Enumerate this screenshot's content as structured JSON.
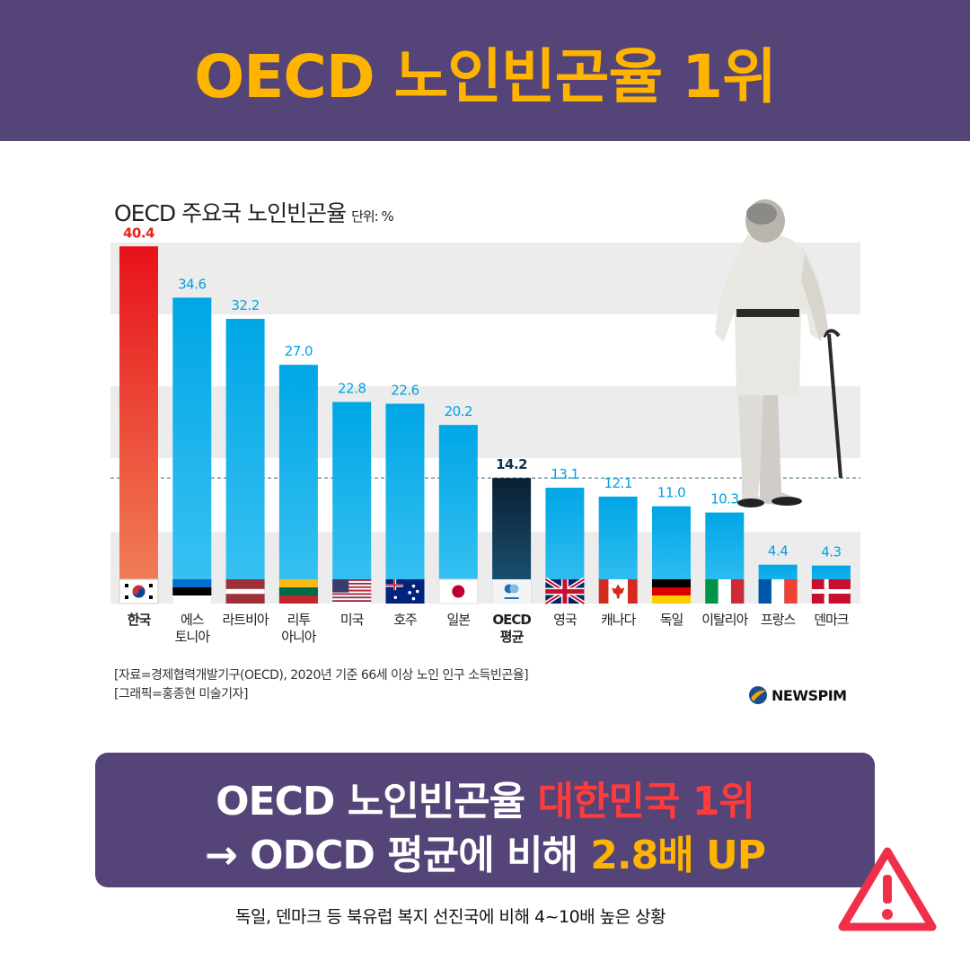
{
  "header": {
    "title": "OECD 노인빈곤율 1위"
  },
  "chart_title": {
    "main": "OECD 주요국 노인빈곤율",
    "unit": "단위: %"
  },
  "chart_data": {
    "type": "bar",
    "title": "OECD 주요국 노인빈곤율",
    "unit": "단위: %",
    "categories": [
      "한국",
      "에스\n토니아",
      "라트비아",
      "리투\n아니아",
      "미국",
      "호주",
      "일본",
      "OECD\n평균",
      "영국",
      "캐나다",
      "독일",
      "이탈리아",
      "프랑스",
      "덴마크"
    ],
    "values": [
      40.4,
      34.6,
      32.2,
      27.0,
      22.8,
      22.6,
      20.2,
      14.2,
      13.1,
      12.1,
      11.0,
      10.3,
      4.4,
      4.3
    ],
    "value_labels": [
      "40.4",
      "34.6",
      "32.2",
      "27.0",
      "22.8",
      "22.6",
      "20.2",
      "14.2",
      "13.1",
      "12.1",
      "11.0",
      "10.3",
      "4.4",
      "4.3"
    ],
    "ylim": [
      0,
      45
    ],
    "reference_line": 14.2,
    "grid": "alternating bands",
    "colors": {
      "korea": "#e8221e",
      "oecd": "#10304c",
      "others": "#00aee8"
    }
  },
  "source": {
    "line1": "[자료=경제협력개발기구(OECD), 2020년 기준 66세 이상 노인 인구 소득빈곤율]",
    "line2": "[그래픽=홍종현 미술기자]"
  },
  "brand": "NEWSPIM",
  "summary": {
    "line1_a": "OECD 노인빈곤율 ",
    "line1_b": "대한민국 1위",
    "line2_a": "→ ODCD 평균에 비해 ",
    "line2_b": "2.8배 UP"
  },
  "footer_note": "독일, 덴마크 등 북유럽 복지 선진국에 비해 4~10배 높은 상황",
  "icons": {
    "warning": "warning-triangle-icon",
    "brand_logo": "newspim-logo-icon"
  }
}
